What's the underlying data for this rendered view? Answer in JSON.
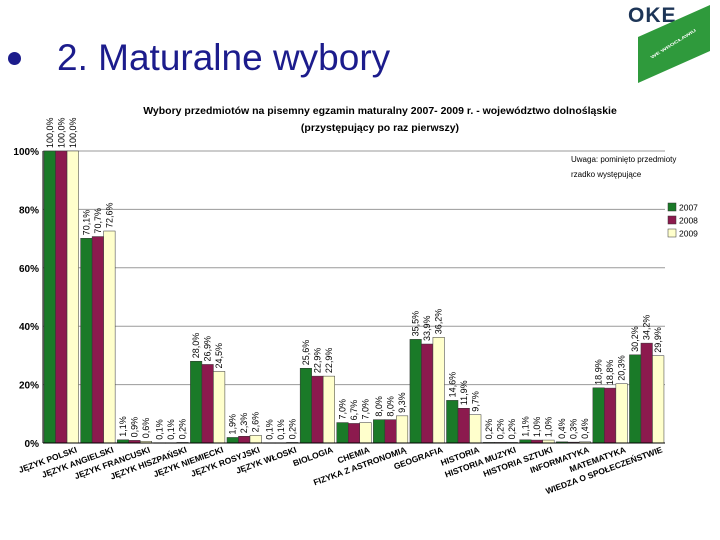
{
  "slide": {
    "title": "2. Maturalne wybory",
    "bullet_color": "#1c1c8c"
  },
  "logo": {
    "text": "OKE",
    "subtext": "WE WROCŁAWIU",
    "badge_color": "#2f9a3c"
  },
  "chart_data": {
    "type": "bar",
    "title_line1": "Wybory przedmiotów na pisemny egzamin maturalny 2007- 2009 r. - województwo dolnośląskie",
    "title_line2": "(przystępujący po raz pierwszy)",
    "note_line1": "Uwaga: pominięto przedmioty",
    "note_line2": "rzadko występujące",
    "ylim": [
      0,
      100
    ],
    "yticks": [
      "0%",
      "20%",
      "40%",
      "60%",
      "80%",
      "100%"
    ],
    "ytick_values": [
      0,
      20,
      40,
      60,
      80,
      100
    ],
    "grid": true,
    "legend_position": "right",
    "categories": [
      "JĘZYK POLSKI",
      "JĘZYK ANGIELSKI",
      "JĘZYK FRANCUSKI",
      "JĘZYK HISZPAŃSKI",
      "JĘZYK NIEMIECKI",
      "JĘZYK ROSYJSKI",
      "JĘZYK WŁOSKI",
      "BIOLOGIA",
      "CHEMIA",
      "FIZYKA Z ASTRONOMIĄ",
      "GEOGRAFIA",
      "HISTORIA",
      "HISTORIA MUZYKI",
      "HISTORIA SZTUKI",
      "INFORMATYKA",
      "MATEMATYKA",
      "WIEDZA O SPOŁECZEŃSTWIE"
    ],
    "series": [
      {
        "name": "2007",
        "color": "#1a7a28",
        "values": [
          100.0,
          70.1,
          1.1,
          0.1,
          28.0,
          1.9,
          0.1,
          25.6,
          7.0,
          8.0,
          35.5,
          14.6,
          0.2,
          1.1,
          0.4,
          18.9,
          30.2
        ],
        "labels": [
          "100,0%",
          "70,1%",
          "1,1%",
          "0,1%",
          "28,0%",
          "1,9%",
          "0,1%",
          "25,6%",
          "7,0%",
          "8,0%",
          "35,5%",
          "14,6%",
          "0,2%",
          "1,1%",
          "0,4%",
          "18,9%",
          "30,2%"
        ]
      },
      {
        "name": "2008",
        "color": "#8c1a4e",
        "values": [
          100.0,
          70.7,
          0.9,
          0.1,
          26.9,
          2.3,
          0.1,
          22.9,
          6.7,
          8.0,
          33.9,
          11.9,
          0.2,
          1.0,
          0.3,
          18.8,
          34.2
        ],
        "labels": [
          "100,0%",
          "70,7%",
          "0,9%",
          "0,1%",
          "26,9%",
          "2,3%",
          "0,1%",
          "22,9%",
          "6,7%",
          "8,0%",
          "33,9%",
          "11,9%",
          "0,2%",
          "1,0%",
          "0,3%",
          "18,8%",
          "34,2%"
        ]
      },
      {
        "name": "2009",
        "color": "#ffffcc",
        "values": [
          100.0,
          72.6,
          0.6,
          0.2,
          24.5,
          2.6,
          0.2,
          22.9,
          7.0,
          9.3,
          36.2,
          9.7,
          0.2,
          1.0,
          0.4,
          20.3,
          29.9
        ],
        "labels": [
          "100,0%",
          "72,6%",
          "0,6%",
          "0,2%",
          "24,5%",
          "2,6%",
          "0,2%",
          "22,9%",
          "7,0%",
          "9,3%",
          "36,2%",
          "9,7%",
          "0,2%",
          "1,0%",
          "0,4%",
          "20,3%",
          "29,9%"
        ]
      }
    ]
  }
}
